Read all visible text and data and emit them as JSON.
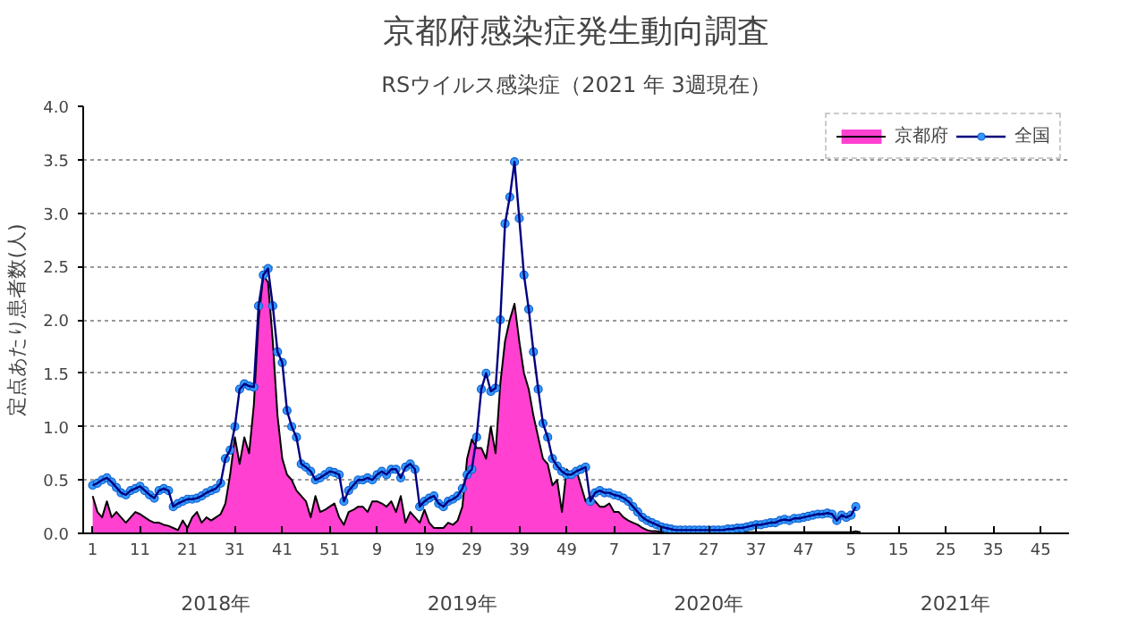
{
  "chart_data": {
    "type": "line",
    "title": "京都府感染症発生動向調査",
    "subtitle": "RSウイルス感染症（2021 年 3週現在）",
    "ylabel": "定点あたり患者数(人)",
    "annotations": [
      "2018年",
      "2019年",
      "2020年",
      "2021年"
    ],
    "categories": [
      "1",
      null,
      null,
      null,
      null,
      null,
      null,
      null,
      null,
      null,
      "11",
      null,
      null,
      null,
      null,
      null,
      null,
      null,
      null,
      null,
      "21",
      null,
      null,
      null,
      null,
      null,
      null,
      null,
      null,
      null,
      "31",
      null,
      null,
      null,
      null,
      null,
      null,
      null,
      null,
      null,
      "41",
      null,
      null,
      null,
      null,
      null,
      null,
      null,
      null,
      null,
      "51",
      null,
      null,
      null,
      null,
      null,
      null,
      null,
      null,
      null,
      "9",
      null,
      null,
      null,
      null,
      null,
      null,
      null,
      null,
      null,
      "19",
      null,
      null,
      null,
      null,
      null,
      null,
      null,
      null,
      null,
      "29",
      null,
      null,
      null,
      null,
      null,
      null,
      null,
      null,
      null,
      "39",
      null,
      null,
      null,
      null,
      null,
      null,
      null,
      null,
      null,
      "49",
      null,
      null,
      null,
      null,
      null,
      null,
      null,
      null,
      null,
      "7",
      null,
      null,
      null,
      null,
      null,
      null,
      null,
      null,
      null,
      "17",
      null,
      null,
      null,
      null,
      null,
      null,
      null,
      null,
      null,
      "27",
      null,
      null,
      null,
      null,
      null,
      null,
      null,
      null,
      null,
      "37",
      null,
      null,
      null,
      null,
      null,
      null,
      null,
      null,
      null,
      "47",
      null,
      null,
      null,
      null,
      null,
      null,
      null,
      null,
      null,
      "5",
      null,
      null,
      null,
      null,
      null,
      null,
      null,
      null,
      null,
      "15",
      null,
      null,
      null,
      null,
      null,
      null,
      null,
      null,
      null,
      "25",
      null,
      null,
      null,
      null,
      null,
      null,
      null,
      null,
      null,
      "35",
      null,
      null,
      null,
      null,
      null,
      null,
      null,
      null,
      null,
      "45",
      null,
      null,
      null,
      null,
      null
    ],
    "series": [
      {
        "name": "京都府",
        "type": "area",
        "color": "#ff40d0",
        "values": [
          0.35,
          0.2,
          0.15,
          0.3,
          0.15,
          0.2,
          0.15,
          0.1,
          0.15,
          0.2,
          0.18,
          0.15,
          0.12,
          0.1,
          0.1,
          0.08,
          0.07,
          0.05,
          0.03,
          0.12,
          0.05,
          0.15,
          0.2,
          0.1,
          0.15,
          0.12,
          0.15,
          0.18,
          0.28,
          0.55,
          0.9,
          0.65,
          0.9,
          0.75,
          1.2,
          2.0,
          2.42,
          2.35,
          1.8,
          1.1,
          0.7,
          0.55,
          0.5,
          0.4,
          0.35,
          0.3,
          0.15,
          0.35,
          0.2,
          0.22,
          0.25,
          0.28,
          0.15,
          0.08,
          0.2,
          0.22,
          0.25,
          0.25,
          0.2,
          0.3,
          0.3,
          0.28,
          0.25,
          0.3,
          0.2,
          0.35,
          0.1,
          0.2,
          0.15,
          0.1,
          0.22,
          0.1,
          0.05,
          0.05,
          0.05,
          0.1,
          0.08,
          0.12,
          0.25,
          0.7,
          0.88,
          0.8,
          0.8,
          0.7,
          1.0,
          0.75,
          1.4,
          1.8,
          2.0,
          2.15,
          1.8,
          1.5,
          1.35,
          1.1,
          0.9,
          0.7,
          0.65,
          0.45,
          0.5,
          0.2,
          0.6,
          0.55,
          0.6,
          0.45,
          0.3,
          0.35,
          0.3,
          0.25,
          0.25,
          0.28,
          0.2,
          0.2,
          0.15,
          0.12,
          0.1,
          0.08,
          0.05,
          0.03,
          0.02,
          0.02,
          0.01,
          0.01,
          0,
          0,
          0.01,
          0.01,
          0.01,
          0.01,
          0.01,
          0.01,
          0.01,
          0.01,
          0.01,
          0.01,
          0.01,
          0.01,
          0.01,
          0.01,
          0.01,
          0.01,
          0.01,
          0.01,
          0.01,
          0.01,
          0.01,
          0.01,
          0.01,
          0.01,
          0.01,
          0.01,
          0.01,
          0.01,
          0.01,
          0.01,
          0.01,
          0.01,
          0.01,
          0.01,
          0.01,
          0.01,
          0.01,
          0.02,
          0.01,
          null,
          null,
          null,
          null,
          null,
          null,
          null,
          null,
          null,
          null,
          null,
          null,
          null,
          null,
          null,
          null,
          null,
          null,
          null,
          null,
          null,
          null,
          null,
          null,
          null,
          null,
          null,
          null,
          null,
          null,
          null,
          null,
          null,
          null,
          null,
          null,
          null,
          null,
          null,
          null,
          null,
          null,
          null
        ]
      },
      {
        "name": "全国",
        "color": "#3399ff",
        "marker": "circle",
        "values": [
          0.45,
          0.47,
          0.5,
          0.52,
          0.48,
          0.43,
          0.38,
          0.36,
          0.4,
          0.42,
          0.44,
          0.4,
          0.36,
          0.33,
          0.4,
          0.42,
          0.4,
          0.25,
          0.28,
          0.3,
          0.32,
          0.32,
          0.33,
          0.35,
          0.38,
          0.4,
          0.42,
          0.47,
          0.7,
          0.78,
          1.0,
          1.35,
          1.4,
          1.38,
          1.37,
          2.13,
          2.42,
          2.48,
          2.13,
          1.7,
          1.6,
          1.15,
          1.0,
          0.9,
          0.65,
          0.62,
          0.58,
          0.5,
          0.52,
          0.55,
          0.58,
          0.57,
          0.55,
          0.3,
          0.4,
          0.45,
          0.5,
          0.5,
          0.52,
          0.5,
          0.55,
          0.58,
          0.55,
          0.6,
          0.6,
          0.52,
          0.62,
          0.65,
          0.6,
          0.25,
          0.3,
          0.33,
          0.35,
          0.28,
          0.25,
          0.3,
          0.32,
          0.35,
          0.42,
          0.55,
          0.6,
          0.9,
          1.35,
          1.5,
          1.33,
          1.36,
          2.0,
          2.9,
          3.15,
          3.48,
          2.95,
          2.42,
          2.1,
          1.7,
          1.35,
          1.03,
          0.9,
          0.7,
          0.63,
          0.58,
          0.55,
          0.55,
          0.58,
          0.6,
          0.62,
          0.3,
          0.38,
          0.4,
          0.38,
          0.38,
          0.36,
          0.35,
          0.33,
          0.3,
          0.25,
          0.2,
          0.15,
          0.12,
          0.1,
          0.08,
          0.06,
          0.05,
          0.04,
          0.03,
          0.03,
          0.03,
          0.03,
          0.03,
          0.03,
          0.03,
          0.03,
          0.03,
          0.03,
          0.03,
          0.04,
          0.04,
          0.05,
          0.05,
          0.06,
          0.07,
          0.08,
          0.08,
          0.09,
          0.1,
          0.1,
          0.12,
          0.13,
          0.12,
          0.14,
          0.14,
          0.15,
          0.16,
          0.17,
          0.18,
          0.18,
          0.19,
          0.18,
          0.12,
          0.17,
          0.15,
          0.17,
          0.25,
          null,
          null,
          null,
          null,
          null,
          null,
          null,
          null,
          null,
          null,
          null,
          null,
          null,
          null,
          null,
          null,
          null,
          null,
          null,
          null,
          null,
          null,
          null,
          null,
          null,
          null,
          null,
          null,
          null,
          null,
          null,
          null,
          null,
          null,
          null,
          null,
          null,
          null,
          null,
          null,
          null,
          null,
          null,
          null
        ]
      }
    ],
    "ylim": [
      0,
      4
    ],
    "yticks": [
      {
        "value": 0,
        "label": "0.0"
      },
      {
        "value": 0.5,
        "label": "0.5"
      },
      {
        "value": 1,
        "label": "1.0"
      },
      {
        "value": 1.5,
        "label": "1.5"
      },
      {
        "value": 2,
        "label": "2.0"
      },
      {
        "value": 2.5,
        "label": "2.5"
      },
      {
        "value": 3,
        "label": "3.0"
      },
      {
        "value": 3.5,
        "label": "3.5"
      },
      {
        "value": 4,
        "label": "4.0"
      }
    ],
    "grid": "y",
    "legend": "top right",
    "line_style": "solid"
  }
}
